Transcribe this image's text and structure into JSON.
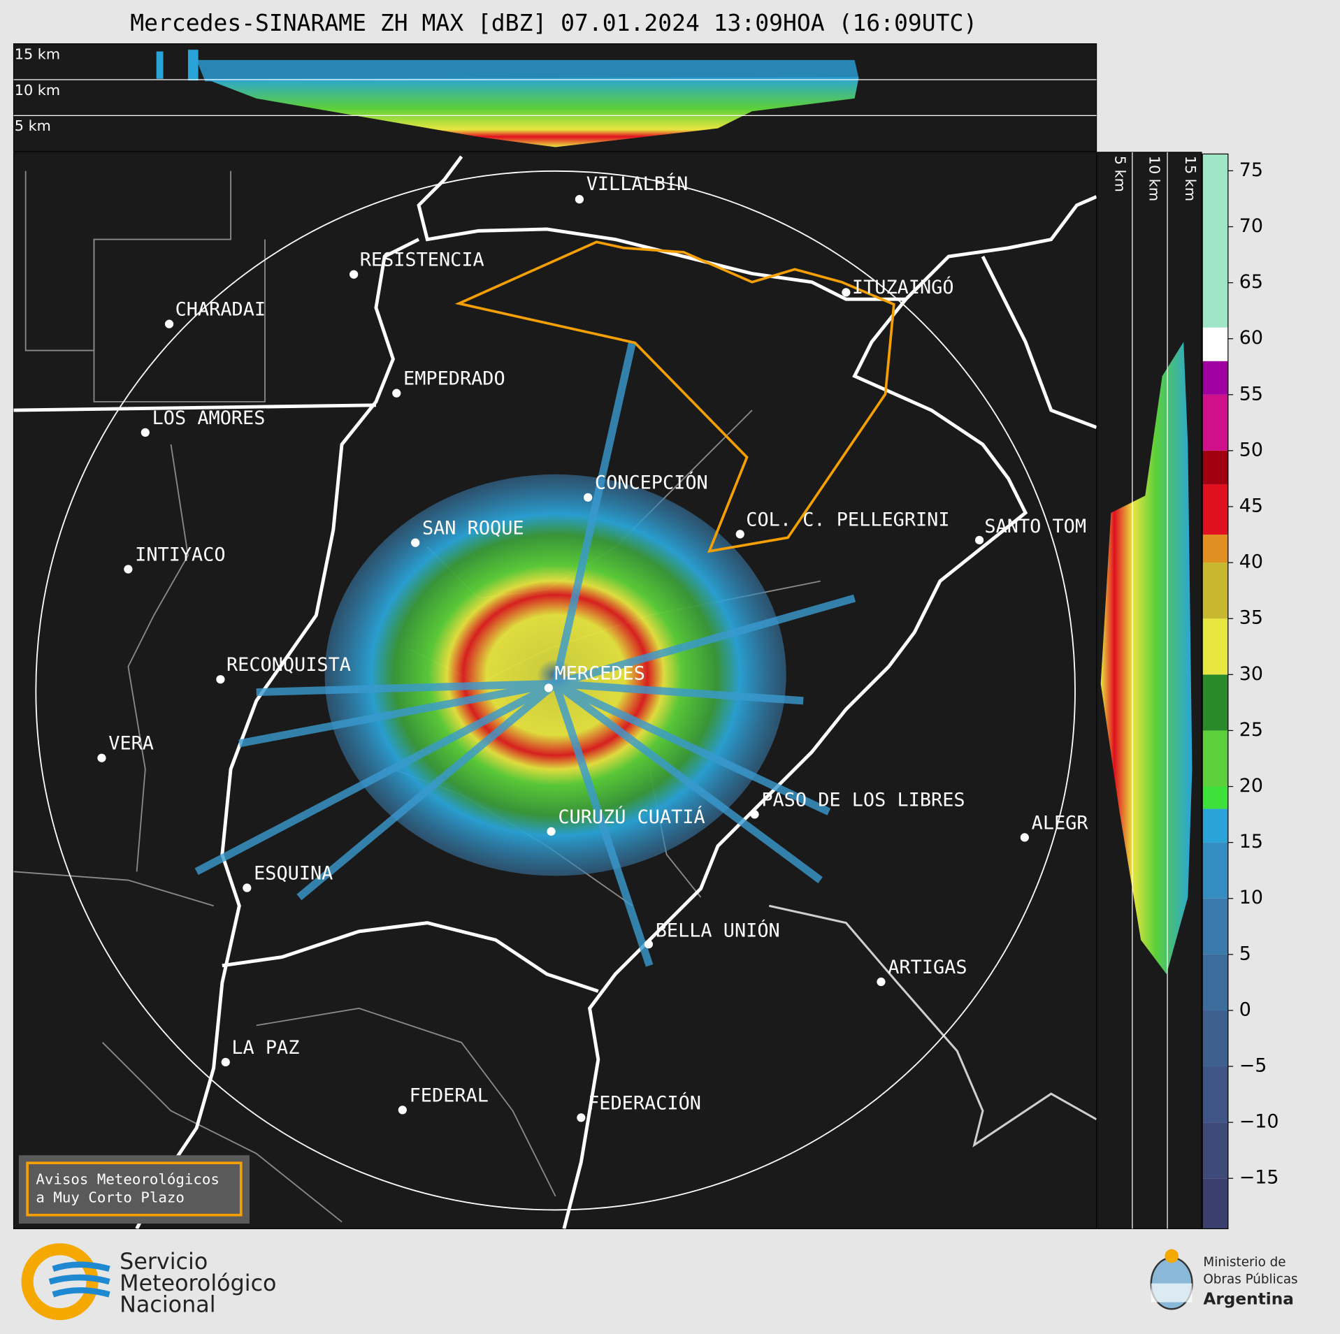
{
  "title": "Mercedes-SINARAME ZH MAX [dBZ] 07.01.2024 13:09HOA (16:09UTC)",
  "top_panel_labels": [
    "15 km",
    "10 km",
    "5 km"
  ],
  "side_panel_labels": [
    "5 km",
    "10 km",
    "15 km"
  ],
  "cities": [
    "VILLALBÍN",
    "RESISTENCIA",
    "CHARADAI",
    "EMPEDRADO",
    "LOS AMORES",
    "CONCEPCIÓN",
    "SAN ROQUE",
    "COL. C. PELLEGRINI",
    "SANTO TOM",
    "ITUZAINGÓ",
    "INTIYACO",
    "RECONQUISTA",
    "MERCEDES",
    "VERA",
    "PASO DE LOS LIBRES",
    "CURUZÚ CUATIÁ",
    "ALEGR",
    "ESQUINA",
    "BELLA UNIÓN",
    "ARTIGAS",
    "LA PAZ",
    "FEDERAL",
    "FEDERACIÓN"
  ],
  "warning_box": [
    "Avisos Meteorológicos",
    "a Muy Corto Plazo"
  ],
  "colorbar": {
    "zlim": [
      -19.5,
      76.5
    ],
    "ticks": [
      75,
      70,
      65,
      60,
      55,
      50,
      45,
      40,
      35,
      30,
      25,
      20,
      15,
      10,
      5,
      0,
      {
        "value": -5,
        "label": "−5"
      },
      {
        "value": -10,
        "label": "−10"
      },
      {
        "value": -15,
        "label": "−15"
      }
    ],
    "bounds": [
      -19.5,
      -15,
      -10,
      -5,
      0,
      5,
      10,
      15,
      18,
      20,
      25,
      30,
      35,
      40,
      42.5,
      47,
      50,
      55,
      58,
      61,
      76.5
    ],
    "colors": [
      "#3a3f6e",
      "#3d4a7a",
      "#3e5585",
      "#3d6090",
      "#3b6c9c",
      "#3a7aaa",
      "#348cc0",
      "#2aa4d8",
      "#3ee03a",
      "#5cd03a",
      "#2a8a2a",
      "#e8e640",
      "#c8b830",
      "#e09020",
      "#e01020",
      "#a00010",
      "#d0108a",
      "#a000a0",
      "#ffffff",
      "#9ee6c6"
    ]
  },
  "footer": {
    "smn": [
      "Servicio",
      "Meteorológico",
      "Nacional"
    ],
    "ministry": [
      "Ministerio de",
      "Obras Públicas",
      "Argentina"
    ]
  }
}
